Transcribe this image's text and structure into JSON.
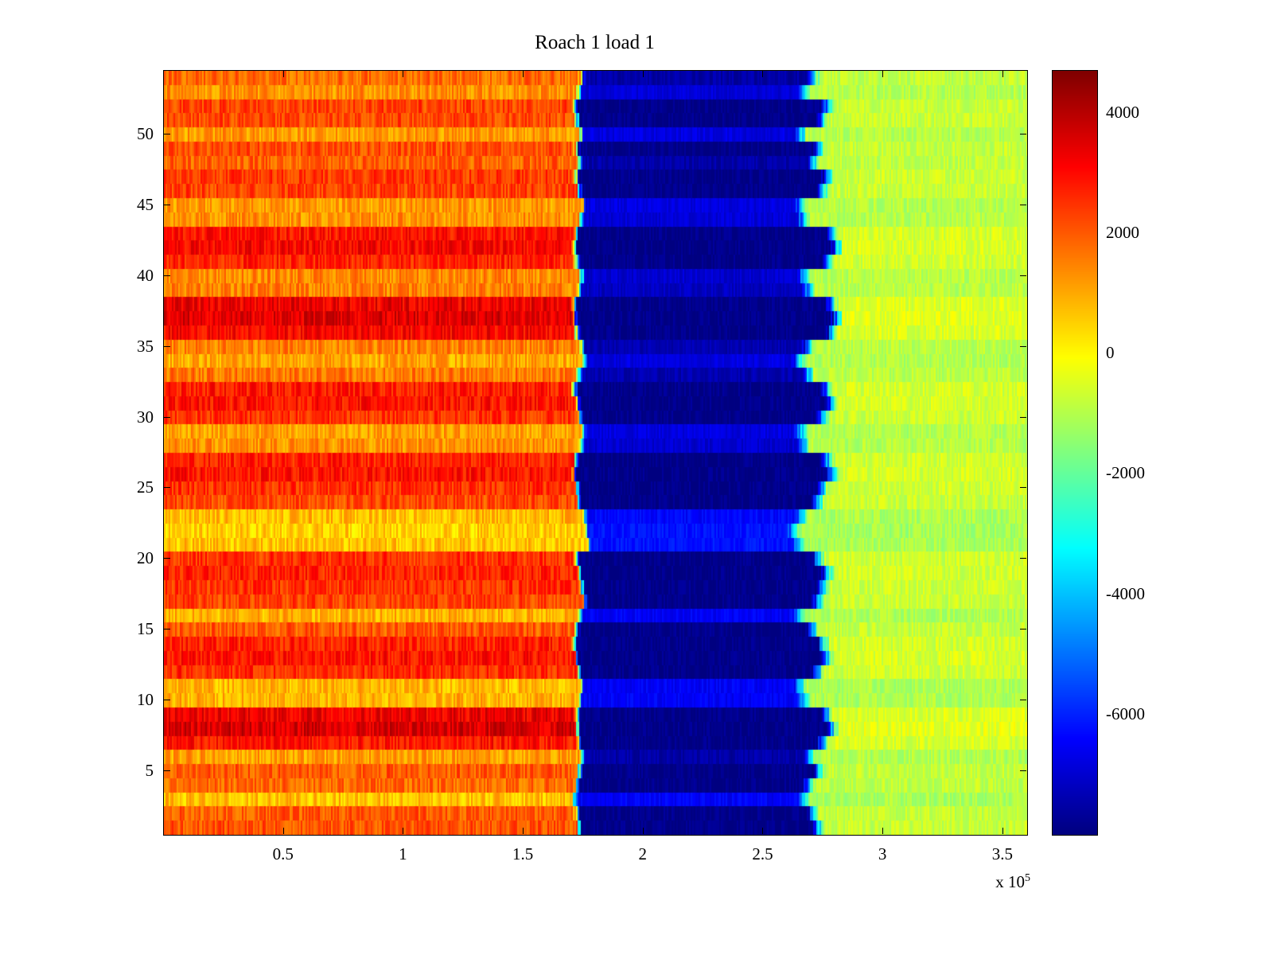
{
  "title": "Roach 1 load 1",
  "x_axis": {
    "tick_labels": [
      "0.5",
      "1",
      "1.5",
      "2",
      "2.5",
      "3",
      "3.5"
    ],
    "tick_values": [
      0.5,
      1,
      1.5,
      2,
      2.5,
      3,
      3.5
    ],
    "lim": [
      0,
      3.6
    ],
    "units_scale_label_base": "x 10",
    "units_scale_label_exp": "5"
  },
  "y_axis": {
    "tick_labels": [
      "5",
      "10",
      "15",
      "20",
      "25",
      "30",
      "35",
      "40",
      "45",
      "50"
    ],
    "tick_values": [
      5,
      10,
      15,
      20,
      25,
      30,
      35,
      40,
      45,
      50
    ],
    "lim": [
      0.5,
      54.5
    ]
  },
  "colorbar": {
    "tick_labels": [
      "4000",
      "2000",
      "0",
      "-2000",
      "-4000",
      "-6000"
    ],
    "tick_values": [
      4000,
      2000,
      0,
      -2000,
      -4000,
      -6000
    ],
    "clim": [
      -8000,
      4700
    ],
    "colormap": "jet"
  },
  "chart_data": {
    "type": "heatmap",
    "title": "Roach 1 load 1",
    "x_range": [
      0,
      360000
    ],
    "x_scale": 100000,
    "y_range": [
      1,
      54
    ],
    "n_rows": 54,
    "value_clim": [
      -8000,
      4700
    ],
    "colormap": "jet",
    "description": "54 horizontal trial rows. Warm orange/red band from x=0 to ~1.74e5, deep navy-blue band from ~1.74e5 to ~2.70e5 with cyan fringes, yellow-green band from ~2.70e5 to 3.6e5. Rows alternate in brightness creating horizontal striping.",
    "rows": {
      "left_mean_value": [
        2100,
        2000,
        700,
        1800,
        2000,
        1100,
        2900,
        3600,
        3300,
        900,
        800,
        2600,
        2900,
        2700,
        2000,
        900,
        2300,
        2500,
        2700,
        2500,
        700,
        500,
        800,
        2200,
        2500,
        2900,
        2700,
        1300,
        1100,
        2500,
        2900,
        2800,
        1600,
        1000,
        1500,
        3100,
        3500,
        3300,
        1500,
        1400,
        2700,
        3100,
        2900,
        1300,
        1200,
        2300,
        2400,
        1900,
        2100,
        1200,
        2200,
        2300,
        1300,
        1800
      ],
      "mid_start_x": [
        1.74,
        1.73,
        1.72,
        1.73,
        1.74,
        1.75,
        1.74,
        1.73,
        1.73,
        1.74,
        1.75,
        1.74,
        1.73,
        1.72,
        1.73,
        1.74,
        1.76,
        1.75,
        1.74,
        1.73,
        1.78,
        1.77,
        1.76,
        1.74,
        1.73,
        1.72,
        1.73,
        1.75,
        1.76,
        1.74,
        1.73,
        1.72,
        1.74,
        1.76,
        1.75,
        1.73,
        1.72,
        1.72,
        1.74,
        1.75,
        1.73,
        1.72,
        1.73,
        1.75,
        1.76,
        1.74,
        1.73,
        1.74,
        1.73,
        1.75,
        1.73,
        1.72,
        1.74,
        1.75
      ],
      "mid_end_x": [
        2.7,
        2.68,
        2.64,
        2.66,
        2.7,
        2.66,
        2.72,
        2.76,
        2.74,
        2.64,
        2.63,
        2.7,
        2.74,
        2.72,
        2.68,
        2.62,
        2.7,
        2.72,
        2.74,
        2.7,
        2.62,
        2.6,
        2.63,
        2.7,
        2.72,
        2.76,
        2.74,
        2.64,
        2.63,
        2.72,
        2.76,
        2.74,
        2.66,
        2.62,
        2.66,
        2.76,
        2.78,
        2.76,
        2.66,
        2.64,
        2.74,
        2.78,
        2.76,
        2.64,
        2.63,
        2.72,
        2.74,
        2.68,
        2.7,
        2.63,
        2.72,
        2.74,
        2.64,
        2.68
      ],
      "mid_mean_value": [
        -7900,
        -7900,
        -6500,
        -7900,
        -7900,
        -7500,
        -7900,
        -7900,
        -7900,
        -6500,
        -6500,
        -7900,
        -7900,
        -7900,
        -7900,
        -6500,
        -7900,
        -7900,
        -7900,
        -7900,
        -6200,
        -6200,
        -6400,
        -7900,
        -7900,
        -7900,
        -7900,
        -7000,
        -6800,
        -7900,
        -7900,
        -7900,
        -7400,
        -6800,
        -7400,
        -7900,
        -7900,
        -7900,
        -7200,
        -7000,
        -7900,
        -7900,
        -7900,
        -6900,
        -6800,
        -7900,
        -7900,
        -7500,
        -7900,
        -6800,
        -7900,
        -7900,
        -6900,
        -7500
      ],
      "right_mean_value": [
        -775,
        -800,
        -1125,
        -850,
        -800,
        -1025,
        -575,
        -400,
        -475,
        -1075,
        -1100,
        -650,
        -575,
        -625,
        -800,
        -1075,
        -725,
        -675,
        -625,
        -675,
        -1125,
        -1175,
        -1100,
        -750,
        -675,
        -575,
        -625,
        -975,
        -1025,
        -675,
        -575,
        -600,
        -900,
        -1050,
        -925,
        -525,
        -425,
        -475,
        -925,
        -950,
        -625,
        -525,
        -575,
        -975,
        -1000,
        -725,
        -700,
        -825,
        -775,
        -1000,
        -750,
        -725,
        -975,
        -850
      ]
    },
    "noise_amplitude": {
      "left": 650,
      "mid": 320,
      "right": 430
    }
  }
}
